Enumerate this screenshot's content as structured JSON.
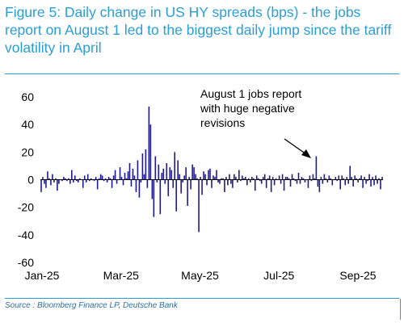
{
  "title": "Figure 5: Daily change in US HY spreads (bps) - the jobs report on August 1 led to the biggest daily jump since the tariff volatility in April",
  "source": "Source : Bloomberg Finance LP, Deutsche Bank",
  "colors": {
    "accent": "#2a9fd6",
    "bar": "#1f1a8c",
    "text": "#000000"
  },
  "chart_data": {
    "type": "bar",
    "title": "",
    "xlabel": "",
    "ylabel": "",
    "ylim": [
      -60,
      60
    ],
    "yticks": [
      60,
      40,
      20,
      0,
      -20,
      -40,
      -60
    ],
    "xtick_labels": [
      "Jan-25",
      "Mar-25",
      "May-25",
      "Jul-25",
      "Sep-25"
    ],
    "annotation": {
      "lines": [
        "August 1 jobs report",
        "with huge negative",
        "revisions"
      ]
    },
    "series": [
      {
        "values": [
          -9,
          2,
          -3,
          -6,
          6,
          1,
          -4,
          4,
          -2,
          1,
          -8,
          -3,
          0,
          -1,
          2,
          1,
          -1,
          1,
          -3,
          7,
          -2,
          3,
          -1,
          -2,
          1,
          0,
          -6,
          3,
          -2,
          4,
          -1,
          1,
          0,
          -1,
          2,
          -7,
          1,
          4,
          3,
          -1,
          1,
          -2,
          2,
          1,
          -6,
          3,
          7,
          -3,
          0,
          9,
          2,
          -4,
          5,
          1,
          6,
          12,
          -5,
          8,
          3,
          -9,
          14,
          -13,
          -2,
          19,
          4,
          22,
          -6,
          53,
          40,
          -14,
          -27,
          17,
          -2,
          11,
          -25,
          5,
          8,
          -3,
          12,
          -12,
          9,
          7,
          -6,
          20,
          -23,
          14,
          4,
          -10,
          -2,
          3,
          9,
          -19,
          2,
          -7,
          11,
          9,
          4,
          1,
          -38,
          2,
          -11,
          6,
          4,
          -4,
          7,
          8,
          -6,
          3,
          2,
          7,
          -2,
          -3,
          1,
          1,
          -9,
          2,
          -4,
          4,
          -3,
          -6,
          4,
          2,
          -2,
          7,
          -1,
          3,
          1,
          2,
          -4,
          1,
          -2,
          2,
          1,
          -8,
          3,
          1,
          -1,
          -3,
          2,
          4,
          -6,
          1,
          3,
          -9,
          2,
          -4,
          1,
          0,
          3,
          -3,
          4,
          -8,
          2,
          2,
          1,
          -5,
          4,
          1,
          -1,
          -3,
          5,
          -3,
          2,
          1,
          -2,
          0,
          -6,
          3,
          -1,
          4,
          1,
          17,
          -5,
          -9,
          2,
          -3,
          4,
          1,
          -2,
          3,
          1,
          -4,
          0,
          2,
          -1,
          3,
          -7,
          3,
          1,
          -4,
          2,
          -3,
          10,
          2,
          -5,
          3,
          1,
          -2,
          1,
          3,
          -6,
          2,
          -3,
          -1,
          4,
          -5,
          2,
          -4,
          3,
          -3,
          1,
          -7,
          2
        ]
      }
    ]
  }
}
